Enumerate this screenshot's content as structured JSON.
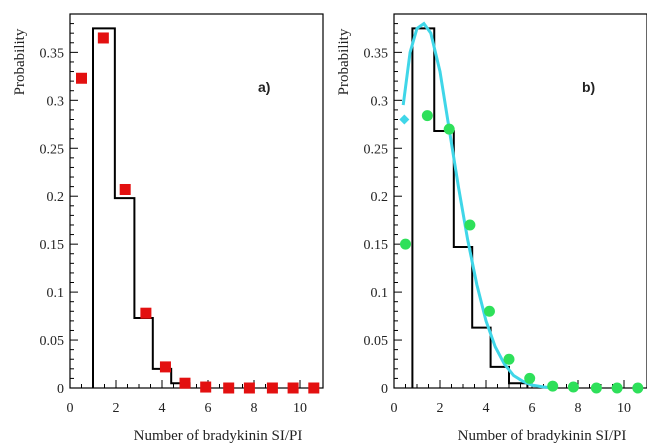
{
  "chart_data": [
    {
      "type": "bar",
      "panel_label": "a)",
      "xlabel": "Number of bradykinin SI/PI",
      "ylabel": "Probability",
      "xlim": [
        0,
        11
      ],
      "ylim": [
        0,
        0.39
      ],
      "xticks": [
        0,
        2,
        4,
        6,
        8,
        10
      ],
      "yticks": [
        0,
        0.05,
        0.1,
        0.15,
        0.2,
        0.25,
        0.3,
        0.35
      ],
      "ytick_labels": [
        "0",
        "0.05",
        "0.1",
        "0.15",
        "0.2",
        "0.25",
        "0.3",
        "0.35"
      ],
      "histogram": {
        "edges": [
          1.0,
          1.95,
          2.8,
          3.6,
          4.4,
          5.2
        ],
        "values": [
          0.375,
          0.198,
          0.073,
          0.02,
          0.005
        ],
        "color": "#000000"
      },
      "points": {
        "marker": "square",
        "color": "#e31010",
        "x": [
          0.5,
          1.45,
          2.4,
          3.3,
          4.15,
          5.0,
          5.9,
          6.9,
          7.8,
          8.8,
          9.7,
          10.6
        ],
        "y": [
          0.323,
          0.365,
          0.207,
          0.078,
          0.022,
          0.005,
          0.001,
          0.0,
          0.0,
          0.0,
          0.0,
          0.0
        ]
      }
    },
    {
      "type": "bar",
      "panel_label": "b)",
      "xlabel": "Number of bradykinin SI/PI",
      "ylabel": "Probability",
      "xlim": [
        0,
        11
      ],
      "ylim": [
        0,
        0.39
      ],
      "xticks": [
        0,
        2,
        4,
        6,
        8,
        10
      ],
      "yticks": [
        0,
        0.05,
        0.1,
        0.15,
        0.2,
        0.25,
        0.3,
        0.35
      ],
      "ytick_labels": [
        "0",
        "0.05",
        "0.1",
        "0.15",
        "0.2",
        "0.25",
        "0.3",
        "0.35"
      ],
      "histogram": {
        "edges": [
          0.8,
          1.75,
          2.6,
          3.4,
          4.2,
          5.0,
          5.8
        ],
        "values": [
          0.375,
          0.268,
          0.147,
          0.063,
          0.022,
          0.005
        ],
        "color": "#000000"
      },
      "points": {
        "marker": "circle",
        "color": "#2ee05a",
        "x": [
          0.5,
          1.45,
          2.4,
          3.3,
          4.15,
          5.0,
          5.9,
          6.9,
          7.8,
          8.8,
          9.7,
          10.6
        ],
        "y": [
          0.15,
          0.284,
          0.27,
          0.17,
          0.08,
          0.03,
          0.01,
          0.002,
          0.001,
          0.0,
          0.0,
          0.0
        ]
      },
      "fit_curve": {
        "color": "#3fd6e8",
        "x": [
          0.4,
          0.7,
          1.0,
          1.3,
          1.6,
          2.0,
          2.4,
          2.8,
          3.2,
          3.6,
          4.0,
          4.4,
          4.8,
          5.2,
          5.6,
          6.0,
          6.5,
          7.0
        ],
        "y": [
          0.295,
          0.35,
          0.375,
          0.38,
          0.37,
          0.33,
          0.27,
          0.21,
          0.155,
          0.108,
          0.07,
          0.043,
          0.025,
          0.013,
          0.007,
          0.003,
          0.001,
          0.0
        ],
        "marker_x": [
          0.45
        ],
        "marker_y": [
          0.28
        ]
      }
    }
  ]
}
